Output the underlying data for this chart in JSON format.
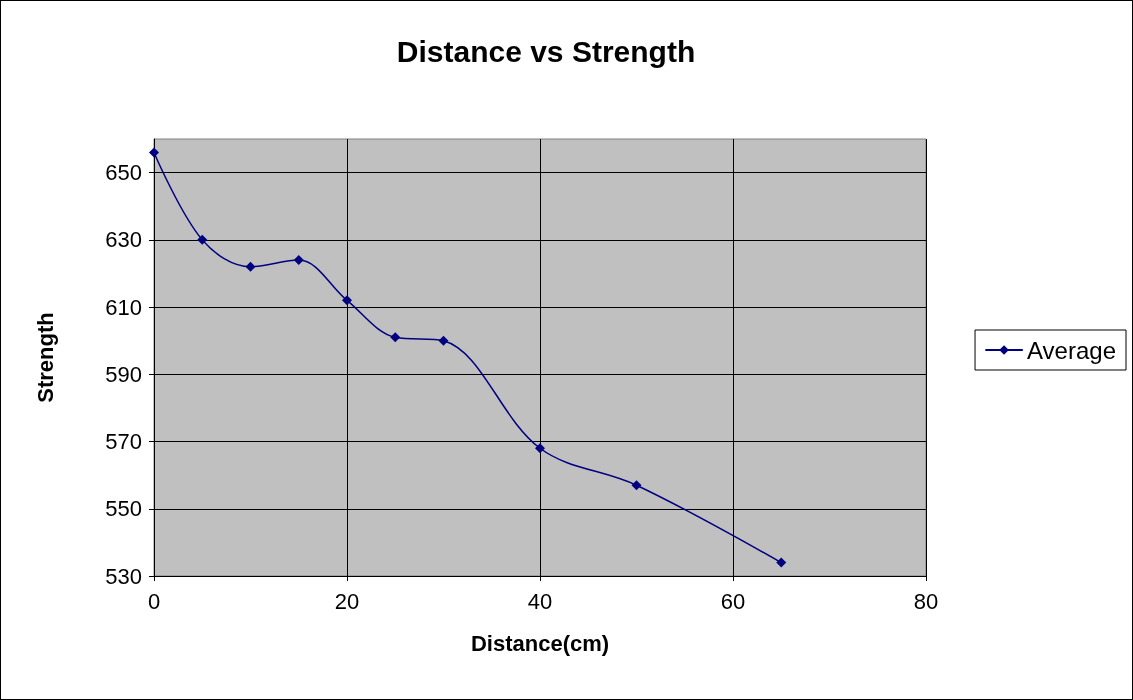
{
  "chart_data": {
    "type": "line",
    "title": "Distance vs Strength",
    "xlabel": "Distance(cm)",
    "ylabel": "Strength",
    "x": [
      0,
      5,
      10,
      15,
      20,
      25,
      30,
      40,
      50,
      65
    ],
    "series": [
      {
        "name": "Average",
        "color": "#000080",
        "values": [
          656,
          630,
          622,
          624,
          612,
          601,
          600,
          568,
          557,
          534
        ]
      }
    ],
    "xlim": [
      0,
      80
    ],
    "xticks": [
      0,
      20,
      40,
      60,
      80
    ],
    "ylim": [
      530,
      660
    ],
    "yticks": [
      530,
      550,
      570,
      590,
      610,
      630,
      650
    ],
    "grid": true,
    "legend": "right",
    "marker": "diamond",
    "line_style": "solid"
  }
}
